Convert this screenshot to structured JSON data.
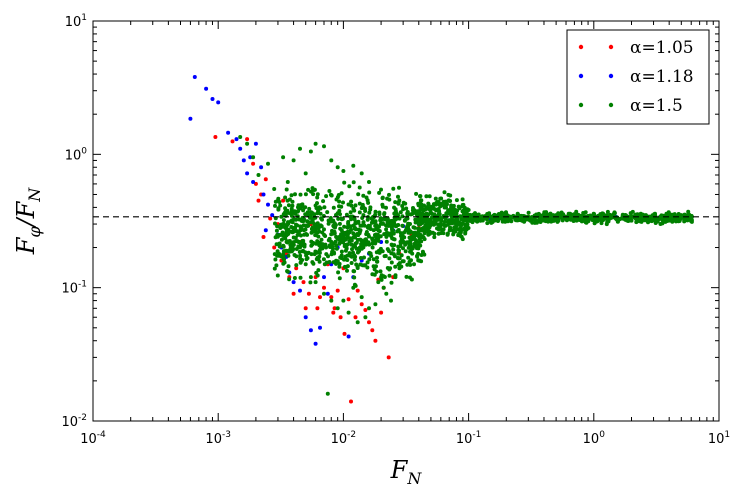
{
  "chart_data": {
    "type": "scatter",
    "title": "",
    "xlabel": "F_N",
    "ylabel": "F_φ/F_N",
    "x_scale": "log",
    "y_scale": "log",
    "xlim": [
      0.0001,
      10
    ],
    "ylim": [
      0.01,
      10
    ],
    "x_ticks": [
      {
        "value": 0.0001,
        "base": "10",
        "exp": "-4"
      },
      {
        "value": 0.001,
        "base": "10",
        "exp": "-3"
      },
      {
        "value": 0.01,
        "base": "10",
        "exp": "-2"
      },
      {
        "value": 0.1,
        "base": "10",
        "exp": "-1"
      },
      {
        "value": 1,
        "base": "10",
        "exp": "0"
      },
      {
        "value": 10,
        "base": "10",
        "exp": "1"
      }
    ],
    "y_ticks": [
      {
        "value": 0.01,
        "base": "10",
        "exp": "-2"
      },
      {
        "value": 0.1,
        "base": "10",
        "exp": "-1"
      },
      {
        "value": 1,
        "base": "10",
        "exp": "0"
      },
      {
        "value": 10,
        "base": "10",
        "exp": "1"
      }
    ],
    "grid": false,
    "legend_position": "top-right",
    "reference_line": {
      "y": 0.34,
      "style": "dashed",
      "color": "#000000"
    },
    "series": [
      {
        "name": "α=1.05",
        "color": "#ff0000",
        "points": [
          [
            0.00095,
            1.35
          ],
          [
            0.0013,
            1.25
          ],
          [
            0.0017,
            1.3
          ],
          [
            0.0019,
            0.85
          ],
          [
            0.002,
            0.6
          ],
          [
            0.0021,
            0.45
          ],
          [
            0.0022,
            0.5
          ],
          [
            0.0023,
            0.24
          ],
          [
            0.0024,
            0.65
          ],
          [
            0.0026,
            0.33
          ],
          [
            0.0028,
            0.2
          ],
          [
            0.003,
            0.3
          ],
          [
            0.0032,
            0.16
          ],
          [
            0.0033,
            0.45
          ],
          [
            0.0035,
            0.18
          ],
          [
            0.0037,
            0.12
          ],
          [
            0.004,
            0.09
          ],
          [
            0.0042,
            0.14
          ],
          [
            0.0045,
            0.22
          ],
          [
            0.0048,
            0.11
          ],
          [
            0.005,
            0.07
          ],
          [
            0.0053,
            0.09
          ],
          [
            0.0055,
            0.3
          ],
          [
            0.006,
            0.12
          ],
          [
            0.0062,
            0.07
          ],
          [
            0.0065,
            0.085
          ],
          [
            0.007,
            0.1
          ],
          [
            0.0075,
            0.15
          ],
          [
            0.008,
            0.085
          ],
          [
            0.0083,
            0.065
          ],
          [
            0.0085,
            0.07
          ],
          [
            0.009,
            0.095
          ],
          [
            0.0095,
            0.06
          ],
          [
            0.01,
            0.14
          ],
          [
            0.0102,
            0.045
          ],
          [
            0.011,
            0.082
          ],
          [
            0.0115,
            0.014
          ],
          [
            0.0125,
            0.06
          ],
          [
            0.013,
            0.095
          ],
          [
            0.014,
            0.075
          ],
          [
            0.015,
            0.068
          ],
          [
            0.016,
            0.055
          ],
          [
            0.017,
            0.048
          ],
          [
            0.018,
            0.04
          ],
          [
            0.019,
            0.115
          ],
          [
            0.02,
            0.065
          ],
          [
            0.021,
            0.1
          ],
          [
            0.023,
            0.03
          ],
          [
            0.025,
            0.12
          ],
          [
            0.028,
            0.18
          ],
          [
            0.03,
            0.22
          ],
          [
            0.035,
            0.25
          ],
          [
            0.04,
            0.28
          ],
          [
            0.05,
            0.3
          ],
          [
            0.06,
            0.3
          ],
          [
            0.08,
            0.31
          ],
          [
            0.1,
            0.32
          ],
          [
            0.15,
            0.33
          ],
          [
            0.2,
            0.33
          ],
          [
            0.3,
            0.34
          ],
          [
            0.45,
            0.34
          ],
          [
            0.6,
            0.34
          ],
          [
            0.9,
            0.34
          ],
          [
            1.3,
            0.34
          ],
          [
            2,
            0.34
          ],
          [
            3,
            0.34
          ],
          [
            4.5,
            0.34
          ],
          [
            6,
            0.34
          ]
        ]
      },
      {
        "name": "α=1.18",
        "color": "#0000ff",
        "points": [
          [
            0.0006,
            1.85
          ],
          [
            0.00065,
            3.8
          ],
          [
            0.0008,
            3.1
          ],
          [
            0.0009,
            2.6
          ],
          [
            0.001,
            2.45
          ],
          [
            0.0012,
            1.45
          ],
          [
            0.0014,
            1.3
          ],
          [
            0.0015,
            1.1
          ],
          [
            0.0016,
            0.9
          ],
          [
            0.0017,
            0.72
          ],
          [
            0.0018,
            0.95
          ],
          [
            0.0019,
            0.62
          ],
          [
            0.002,
            1.2
          ],
          [
            0.0022,
            0.8
          ],
          [
            0.0023,
            0.5
          ],
          [
            0.0024,
            0.27
          ],
          [
            0.0025,
            0.42
          ],
          [
            0.0027,
            0.35
          ],
          [
            0.003,
            0.25
          ],
          [
            0.0032,
            0.2
          ],
          [
            0.0035,
            0.17
          ],
          [
            0.0037,
            0.13
          ],
          [
            0.004,
            0.11
          ],
          [
            0.0045,
            0.095
          ],
          [
            0.005,
            0.06
          ],
          [
            0.0055,
            0.048
          ],
          [
            0.006,
            0.038
          ],
          [
            0.0065,
            0.05
          ],
          [
            0.007,
            0.12
          ],
          [
            0.0075,
            0.09
          ],
          [
            0.008,
            0.15
          ],
          [
            0.009,
            0.2
          ],
          [
            0.01,
            0.25
          ],
          [
            0.011,
            0.043
          ],
          [
            0.012,
            0.12
          ],
          [
            0.014,
            0.16
          ],
          [
            0.016,
            0.18
          ],
          [
            0.02,
            0.22
          ],
          [
            0.025,
            0.27
          ],
          [
            0.03,
            0.29
          ],
          [
            0.04,
            0.3
          ],
          [
            0.05,
            0.31
          ],
          [
            0.07,
            0.32
          ],
          [
            0.1,
            0.33
          ],
          [
            0.15,
            0.33
          ],
          [
            0.25,
            0.34
          ],
          [
            0.4,
            0.34
          ],
          [
            0.7,
            0.34
          ],
          [
            1,
            0.34
          ],
          [
            1.5,
            0.34
          ],
          [
            2.5,
            0.34
          ],
          [
            4,
            0.34
          ],
          [
            6,
            0.33
          ]
        ]
      },
      {
        "name": "α=1.5",
        "color": "#008000",
        "points": [
          [
            0.0015,
            1.35
          ],
          [
            0.0017,
            1.2
          ],
          [
            0.0019,
            0.95
          ],
          [
            0.0021,
            0.7
          ],
          [
            0.0025,
            0.85
          ],
          [
            0.0028,
            0.55
          ],
          [
            0.003,
            0.45
          ],
          [
            0.0033,
            0.95
          ],
          [
            0.0036,
            0.62
          ],
          [
            0.004,
            0.9
          ],
          [
            0.0045,
            1.1
          ],
          [
            0.005,
            0.72
          ],
          [
            0.0055,
            1.05
          ],
          [
            0.006,
            1.2
          ],
          [
            0.007,
            1.15
          ],
          [
            0.008,
            0.9
          ],
          [
            0.009,
            0.8
          ],
          [
            0.01,
            0.75
          ],
          [
            0.012,
            0.82
          ],
          [
            0.014,
            0.72
          ],
          [
            0.016,
            0.62
          ],
          [
            0.0045,
            0.2
          ],
          [
            0.005,
            0.15
          ],
          [
            0.0055,
            0.12
          ],
          [
            0.006,
            0.11
          ],
          [
            0.007,
            0.09
          ],
          [
            0.008,
            0.08
          ],
          [
            0.009,
            0.07
          ],
          [
            0.01,
            0.08
          ],
          [
            0.011,
            0.065
          ],
          [
            0.012,
            0.1
          ],
          [
            0.013,
            0.055
          ],
          [
            0.014,
            0.085
          ],
          [
            0.015,
            0.06
          ],
          [
            0.016,
            0.07
          ],
          [
            0.018,
            0.075
          ],
          [
            0.019,
            0.11
          ],
          [
            0.02,
            0.12
          ],
          [
            0.021,
            0.1
          ],
          [
            0.022,
            0.09
          ],
          [
            0.024,
            0.08
          ],
          [
            0.026,
            0.12
          ],
          [
            0.028,
            0.14
          ],
          [
            0.0075,
            0.016
          ],
          [
            0.035,
            0.2
          ],
          [
            0.04,
            0.25
          ],
          [
            0.045,
            0.28
          ],
          [
            0.05,
            0.4
          ],
          [
            0.055,
            0.38
          ],
          [
            0.06,
            0.3
          ],
          [
            0.07,
            0.32
          ],
          [
            0.08,
            0.36
          ],
          [
            0.1,
            0.35
          ],
          [
            0.12,
            0.32
          ],
          [
            0.15,
            0.34
          ],
          [
            0.2,
            0.33
          ],
          [
            0.25,
            0.35
          ],
          [
            0.3,
            0.34
          ],
          [
            0.4,
            0.33
          ],
          [
            0.5,
            0.35
          ],
          [
            0.6,
            0.34
          ],
          [
            0.8,
            0.33
          ],
          [
            1,
            0.34
          ],
          [
            1.2,
            0.35
          ],
          [
            1.5,
            0.33
          ],
          [
            2,
            0.34
          ],
          [
            2.5,
            0.35
          ],
          [
            3,
            0.34
          ],
          [
            4,
            0.33
          ],
          [
            5,
            0.35
          ],
          [
            6,
            0.34
          ]
        ],
        "cloud": [
          {
            "x_log_min": -2.55,
            "x_log_max": -1.35,
            "y_log_min": -1.05,
            "y_log_max": -0.15,
            "density": 900
          },
          {
            "x_log_min": -1.4,
            "x_log_max": -1.0,
            "y_log_min": -0.7,
            "y_log_max": -0.25,
            "density": 300
          },
          {
            "x_log_min": -1.0,
            "x_log_max": 0.8,
            "y_log_min": -0.53,
            "y_log_max": -0.42,
            "density": 600
          }
        ]
      }
    ]
  }
}
